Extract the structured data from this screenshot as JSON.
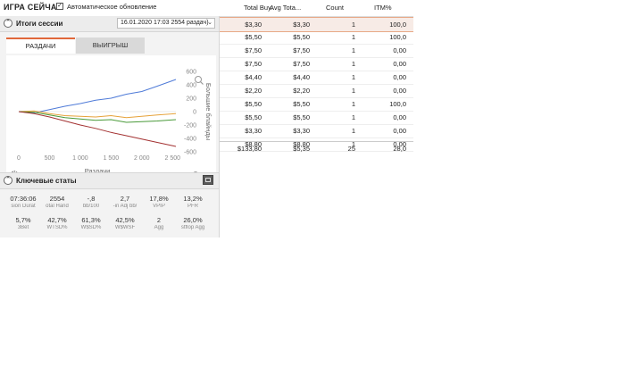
{
  "header": {
    "title": "ИГРА СЕЙЧАС",
    "auto_update_label": "Автоматическое обновление",
    "auto_update_checked": "✓"
  },
  "table": {
    "columns": [
      "Total Buy...",
      "Avg Tota...",
      "Count",
      "ITM%"
    ],
    "rows": [
      [
        "$3,30",
        "$3,30",
        "1",
        "100,0"
      ],
      [
        "$5,50",
        "$5,50",
        "1",
        "100,0"
      ],
      [
        "$7,50",
        "$7,50",
        "1",
        "0,00"
      ],
      [
        "$7,50",
        "$7,50",
        "1",
        "0,00"
      ],
      [
        "$4,40",
        "$4,40",
        "1",
        "0,00"
      ],
      [
        "$2,20",
        "$2,20",
        "1",
        "0,00"
      ],
      [
        "$5,50",
        "$5,50",
        "1",
        "100,0"
      ],
      [
        "$5,50",
        "$5,50",
        "1",
        "0,00"
      ],
      [
        "$3,30",
        "$3,30",
        "1",
        "0,00"
      ],
      [
        "$8,80",
        "$8,80",
        "1",
        "0,00"
      ]
    ],
    "totals": [
      "$133,80",
      "$5,35",
      "25",
      "28,0"
    ]
  },
  "session": {
    "title": "Итоги сессии",
    "select_value": "16.01.2020 17:03 2554 раздач)",
    "tabs": [
      {
        "label": "РАЗДАЧИ",
        "active": true
      },
      {
        "label": "ВЫИГРЫШ",
        "active": false
      }
    ]
  },
  "chart_data": {
    "type": "line",
    "xlabel": "Раздачи",
    "ylabel": "Большие блайнды",
    "xticks": [
      "0",
      "500",
      "1 000",
      "1 500",
      "2 000",
      "2 500"
    ],
    "yticks": [
      "600",
      "400",
      "200",
      "0",
      "-200",
      "-400",
      "-600"
    ],
    "xlim": [
      0,
      2554
    ],
    "ylim": [
      -600,
      600
    ],
    "series": [
      {
        "color": "#4f7bd8",
        "x": [
          0,
          250,
          500,
          750,
          1000,
          1250,
          1500,
          1750,
          2000,
          2250,
          2554
        ],
        "values": [
          0,
          -20,
          30,
          80,
          120,
          170,
          200,
          260,
          300,
          380,
          480
        ]
      },
      {
        "color": "#e6a23a",
        "x": [
          0,
          250,
          500,
          750,
          1000,
          1250,
          1500,
          1750,
          2000,
          2250,
          2554
        ],
        "values": [
          0,
          10,
          -30,
          -60,
          -70,
          -80,
          -60,
          -90,
          -70,
          -50,
          -30
        ]
      },
      {
        "color": "#4a9a3a",
        "x": [
          0,
          250,
          500,
          750,
          1000,
          1250,
          1500,
          1750,
          2000,
          2250,
          2554
        ],
        "values": [
          0,
          -10,
          -50,
          -90,
          -110,
          -130,
          -120,
          -160,
          -150,
          -140,
          -120
        ]
      },
      {
        "color": "#a33131",
        "x": [
          0,
          250,
          500,
          750,
          1000,
          1250,
          1500,
          1750,
          2000,
          2250,
          2554
        ],
        "values": [
          0,
          -30,
          -80,
          -140,
          -200,
          -250,
          -310,
          -360,
          -410,
          -460,
          -520
        ]
      }
    ]
  },
  "key_stats": {
    "title": "Ключевые статы",
    "items": [
      {
        "value": "07:36:06",
        "label": "sion Durat"
      },
      {
        "value": "2554",
        "label": "otal Hand"
      },
      {
        "value": "-,8",
        "label": "bb/100"
      },
      {
        "value": "2,7",
        "label": "-in Adj bb/"
      },
      {
        "value": "17,8%",
        "label": "VPIP"
      },
      {
        "value": "13,2%",
        "label": "PFR"
      },
      {
        "value": "5,7%",
        "label": "3Bet"
      },
      {
        "value": "42,7%",
        "label": "WTSD%"
      },
      {
        "value": "61,3%",
        "label": "W$SD%"
      },
      {
        "value": "42,5%",
        "label": "W$WSF"
      },
      {
        "value": "2",
        "label": "Agg"
      },
      {
        "value": "26,0%",
        "label": "stflop Agg"
      }
    ]
  },
  "icons": {
    "zoom": "zoom-icon",
    "settings": "gear-icon",
    "info": "info-icon"
  }
}
